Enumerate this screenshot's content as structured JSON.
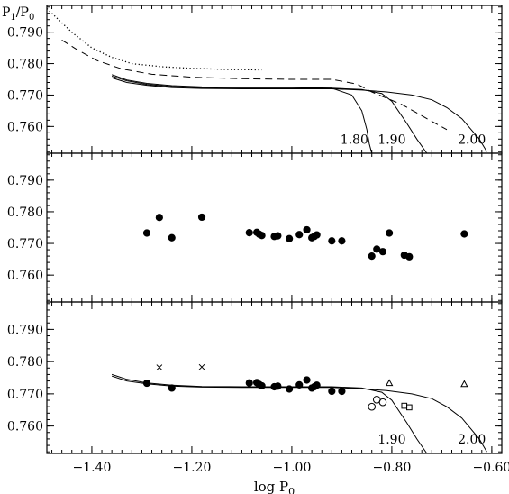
{
  "chart_data": [
    {
      "type": "line",
      "panel": "top",
      "ylabel": "P1/P0",
      "xlim": [
        -1.49,
        -0.58
      ],
      "ylim": [
        0.7515,
        0.7985
      ],
      "yticks": [
        0.76,
        0.77,
        0.78,
        0.79
      ],
      "ytick_labels": [
        "0.760",
        "0.770",
        "0.780",
        "0.790"
      ],
      "xticks": [
        -1.4,
        -1.2,
        -1.0,
        -0.8,
        -0.6
      ],
      "series": [
        {
          "style": "dotted",
          "x": [
            -1.49,
            -1.47,
            -1.44,
            -1.4,
            -1.36,
            -1.32,
            -1.26,
            -1.2,
            -1.12,
            -1.06
          ],
          "y": [
            0.7975,
            0.7945,
            0.79,
            0.785,
            0.782,
            0.78,
            0.779,
            0.7785,
            0.7781,
            0.778
          ]
        },
        {
          "style": "dashed",
          "x": [
            -1.46,
            -1.43,
            -1.39,
            -1.34,
            -1.28,
            -1.2,
            -1.1,
            -1.0,
            -0.92,
            -0.87,
            -0.84,
            -0.78,
            -0.73,
            -0.69
          ],
          "y": [
            0.7875,
            0.7845,
            0.781,
            0.7783,
            0.7766,
            0.7757,
            0.7752,
            0.775,
            0.775,
            0.7735,
            0.771,
            0.767,
            0.7625,
            0.759
          ]
        },
        {
          "style": "solid",
          "x": [
            -1.36,
            -1.33,
            -1.29,
            -1.24,
            -1.18,
            -1.1,
            -1.0,
            -0.92,
            -0.88,
            -0.86,
            -0.85,
            -0.845,
            -0.84
          ],
          "y": [
            0.7765,
            0.7748,
            0.7737,
            0.773,
            0.7726,
            0.7725,
            0.7725,
            0.7722,
            0.77,
            0.765,
            0.759,
            0.7545,
            0.7515
          ]
        },
        {
          "style": "solid",
          "x": [
            -1.36,
            -1.33,
            -1.29,
            -1.24,
            -1.18,
            -1.1,
            -1.0,
            -0.92,
            -0.86,
            -0.82,
            -0.8,
            -0.77,
            -0.75,
            -0.73
          ],
          "y": [
            0.776,
            0.7745,
            0.7734,
            0.7727,
            0.7723,
            0.7722,
            0.7722,
            0.7722,
            0.7718,
            0.7705,
            0.768,
            0.761,
            0.756,
            0.7515
          ]
        },
        {
          "style": "solid",
          "x": [
            -1.36,
            -1.33,
            -1.29,
            -1.24,
            -1.18,
            -1.1,
            -1.0,
            -0.92,
            -0.86,
            -0.81,
            -0.76,
            -0.72,
            -0.69,
            -0.66,
            -0.625,
            -0.61
          ],
          "y": [
            0.7755,
            0.774,
            0.7731,
            0.7724,
            0.7721,
            0.772,
            0.772,
            0.772,
            0.7716,
            0.771,
            0.77,
            0.7685,
            0.766,
            0.7625,
            0.756,
            0.752
          ]
        }
      ],
      "annotations": [
        {
          "text": "1.80",
          "x": -0.875,
          "y": 0.756
        },
        {
          "text": "1.90",
          "x": -0.8,
          "y": 0.756
        },
        {
          "text": "2.00",
          "x": -0.64,
          "y": 0.756
        }
      ]
    },
    {
      "type": "scatter",
      "panel": "middle",
      "xlim": [
        -1.49,
        -0.58
      ],
      "ylim": [
        0.7515,
        0.7985
      ],
      "yticks": [
        0.76,
        0.77,
        0.78,
        0.79
      ],
      "ytick_labels": [
        "0.760",
        "0.770",
        "0.780",
        "0.790"
      ],
      "xticks": [
        -1.4,
        -1.2,
        -1.0,
        -0.8,
        -0.6
      ],
      "points": {
        "x": [
          -1.29,
          -1.265,
          -1.24,
          -1.18,
          -1.085,
          -1.07,
          -1.065,
          -1.06,
          -1.035,
          -1.028,
          -1.005,
          -0.985,
          -0.97,
          -0.96,
          -0.955,
          -0.95,
          -0.92,
          -0.9,
          -0.84,
          -0.83,
          -0.818,
          -0.805,
          -0.775,
          -0.765,
          -0.655
        ],
        "y": [
          0.7733,
          0.7782,
          0.7718,
          0.7783,
          0.7734,
          0.7735,
          0.7729,
          0.7725,
          0.7722,
          0.7724,
          0.7715,
          0.7728,
          0.7743,
          0.7718,
          0.7722,
          0.7727,
          0.7708,
          0.7708,
          0.766,
          0.7682,
          0.7674,
          0.7733,
          0.7663,
          0.7658,
          0.773
        ]
      }
    },
    {
      "type": "scatter",
      "panel": "bottom",
      "xlabel": "log P0",
      "xlim": [
        -1.49,
        -0.58
      ],
      "ylim": [
        0.7515,
        0.7985
      ],
      "yticks": [
        0.76,
        0.77,
        0.78,
        0.79
      ],
      "ytick_labels": [
        "0.760",
        "0.770",
        "0.780",
        "0.790"
      ],
      "xticks": [
        -1.4,
        -1.2,
        -1.0,
        -0.8,
        -0.6
      ],
      "xtick_labels": [
        "−1.40",
        "−1.20",
        "−1.00",
        "−0.80",
        "−0.60"
      ],
      "filled_circles": {
        "x": [
          -1.29,
          -1.24,
          -1.085,
          -1.07,
          -1.065,
          -1.06,
          -1.035,
          -1.028,
          -1.005,
          -0.985,
          -0.97,
          -0.96,
          -0.955,
          -0.95,
          -0.92,
          -0.9
        ],
        "y": [
          0.7733,
          0.7718,
          0.7734,
          0.7735,
          0.7729,
          0.7725,
          0.7722,
          0.7724,
          0.7715,
          0.7728,
          0.7743,
          0.7718,
          0.7722,
          0.7727,
          0.7708,
          0.7708
        ]
      },
      "crosses": {
        "x": [
          -1.265,
          -1.18
        ],
        "y": [
          0.7782,
          0.7783
        ]
      },
      "open_circles": {
        "x": [
          -0.84,
          -0.83,
          -0.818
        ],
        "y": [
          0.766,
          0.7682,
          0.7674
        ]
      },
      "squares": {
        "x": [
          -0.775,
          -0.765
        ],
        "y": [
          0.7663,
          0.7658
        ]
      },
      "triangles": {
        "x": [
          -0.805,
          -0.655
        ],
        "y": [
          0.7733,
          0.773
        ]
      },
      "series": [
        {
          "style": "solid",
          "x": [
            -1.36,
            -1.33,
            -1.29,
            -1.24,
            -1.18,
            -1.1,
            -1.0,
            -0.92,
            -0.86,
            -0.82,
            -0.8,
            -0.77,
            -0.75,
            -0.73
          ],
          "y": [
            0.776,
            0.7745,
            0.7734,
            0.7727,
            0.7723,
            0.7722,
            0.7722,
            0.7722,
            0.7718,
            0.7705,
            0.768,
            0.761,
            0.756,
            0.7515
          ]
        },
        {
          "style": "solid",
          "x": [
            -1.36,
            -1.33,
            -1.29,
            -1.24,
            -1.18,
            -1.1,
            -1.0,
            -0.92,
            -0.86,
            -0.81,
            -0.76,
            -0.72,
            -0.69,
            -0.66,
            -0.625,
            -0.61
          ],
          "y": [
            0.7755,
            0.774,
            0.7731,
            0.7724,
            0.7721,
            0.772,
            0.772,
            0.772,
            0.7716,
            0.771,
            0.77,
            0.7685,
            0.766,
            0.7625,
            0.756,
            0.752
          ]
        }
      ],
      "annotations": [
        {
          "text": "1.90",
          "x": -0.8,
          "y": 0.756
        },
        {
          "text": "2.00",
          "x": -0.64,
          "y": 0.756
        }
      ]
    }
  ]
}
